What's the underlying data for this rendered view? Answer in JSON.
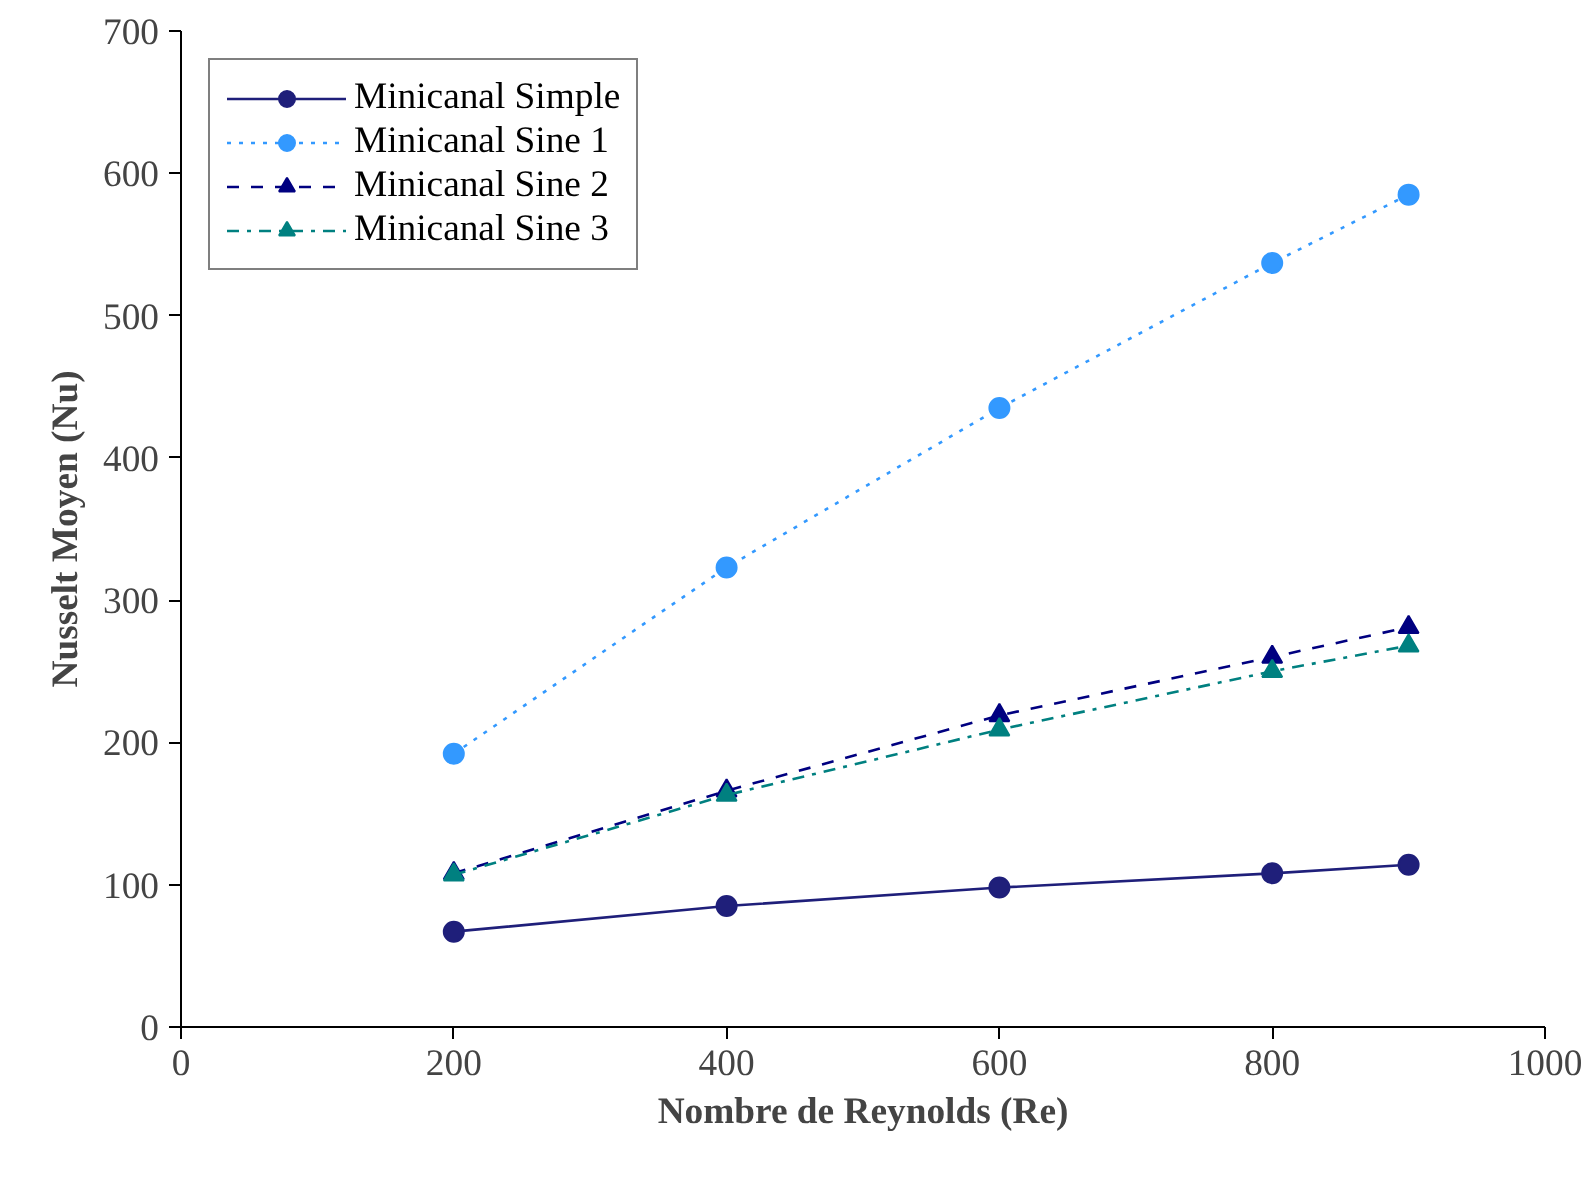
{
  "chart_data": {
    "type": "line",
    "xlabel": "Nombre de Reynolds (Re)",
    "ylabel": "Nusselt Moyen (Nu)",
    "x": [
      200,
      400,
      600,
      800,
      900
    ],
    "xlim": [
      0,
      1000
    ],
    "xticks": [
      0,
      200,
      400,
      600,
      800,
      1000
    ],
    "ylim": [
      0,
      700
    ],
    "yticks": [
      0,
      100,
      200,
      300,
      400,
      500,
      600,
      700
    ],
    "grid": false,
    "legend": "top left",
    "series": [
      {
        "name": "Minicanal Simple",
        "color": "#1f1f7a",
        "marker": "circle",
        "line_style": "solid",
        "values": [
          67,
          85,
          98,
          108,
          114
        ]
      },
      {
        "name": "Minicanal Sine 1",
        "color": "#3399ff",
        "marker": "circle",
        "line_style": "dotted",
        "values": [
          192,
          323,
          435,
          537,
          585
        ]
      },
      {
        "name": "Minicanal Sine 2",
        "color": "#000080",
        "marker": "triangle",
        "line_style": "dashed",
        "values": [
          108,
          166,
          219,
          260,
          281
        ]
      },
      {
        "name": "Minicanal Sine 3",
        "color": "#008080",
        "marker": "triangle",
        "line_style": "dashdot",
        "values": [
          107,
          163,
          209,
          250,
          268
        ]
      }
    ]
  }
}
